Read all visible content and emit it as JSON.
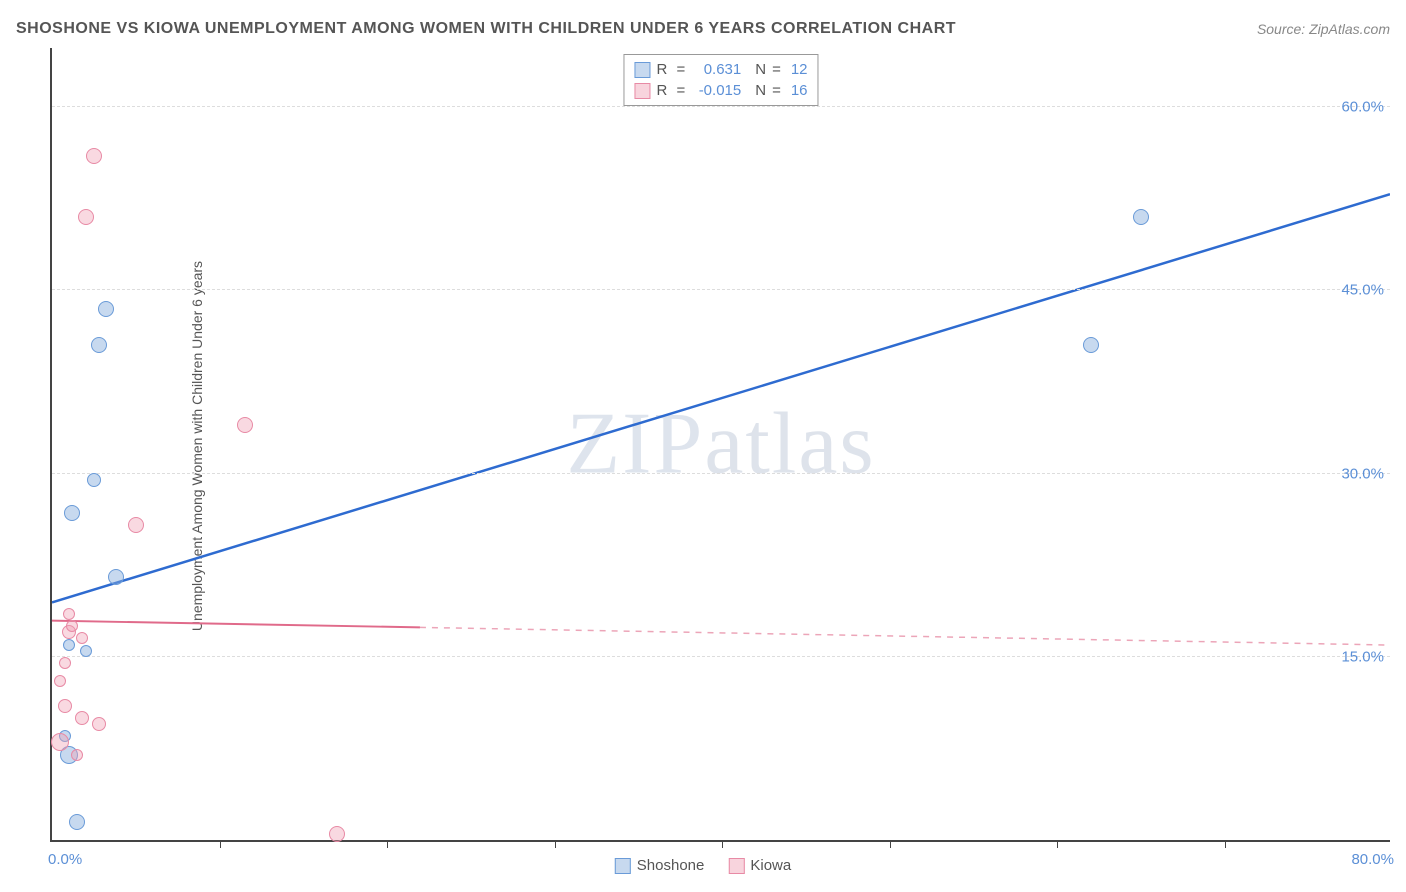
{
  "header": {
    "title": "SHOSHONE VS KIOWA UNEMPLOYMENT AMONG WOMEN WITH CHILDREN UNDER 6 YEARS CORRELATION CHART",
    "source": "Source: ZipAtlas.com"
  },
  "chart": {
    "type": "scatter",
    "ylabel": "Unemployment Among Women with Children Under 6 years",
    "xlim": [
      0,
      80
    ],
    "ylim": [
      0,
      65
    ],
    "x_axis_labels": {
      "min": "0.0%",
      "max": "80.0%"
    },
    "y_ticks": [
      {
        "value": 15,
        "label": "15.0%"
      },
      {
        "value": 30,
        "label": "30.0%"
      },
      {
        "value": 45,
        "label": "45.0%"
      },
      {
        "value": 60,
        "label": "60.0%"
      }
    ],
    "x_tick_positions": [
      10,
      20,
      30,
      40,
      50,
      60,
      70
    ],
    "background_color": "#ffffff",
    "grid_color": "#dddddd",
    "axis_color": "#444444",
    "tick_label_color": "#5b8fd6",
    "watermark": "ZIPatlas",
    "series": [
      {
        "name": "Shoshone",
        "color_fill": "rgba(130,170,220,0.45)",
        "color_stroke": "#6a9bd8",
        "trend_color": "#2e6bd0",
        "trend_width": 2.5,
        "trend_solid_until_x": 80,
        "r": 0.631,
        "n": 12,
        "trend": {
          "x1": 0,
          "y1": 19.5,
          "x2": 80,
          "y2": 53
        },
        "points": [
          {
            "x": 1.0,
            "y": 7.0,
            "size": 18
          },
          {
            "x": 0.8,
            "y": 8.5,
            "size": 12
          },
          {
            "x": 1.5,
            "y": 1.5,
            "size": 16
          },
          {
            "x": 2.0,
            "y": 15.5,
            "size": 12
          },
          {
            "x": 1.0,
            "y": 16.0,
            "size": 12
          },
          {
            "x": 1.2,
            "y": 26.8,
            "size": 16
          },
          {
            "x": 3.8,
            "y": 21.5,
            "size": 16
          },
          {
            "x": 2.5,
            "y": 29.5,
            "size": 14
          },
          {
            "x": 2.8,
            "y": 40.5,
            "size": 16
          },
          {
            "x": 3.2,
            "y": 43.5,
            "size": 16
          },
          {
            "x": 62.0,
            "y": 40.5,
            "size": 16
          },
          {
            "x": 65.0,
            "y": 51.0,
            "size": 16
          }
        ]
      },
      {
        "name": "Kiowa",
        "color_fill": "rgba(240,160,180,0.40)",
        "color_stroke": "#e88aa5",
        "trend_color": "#e06a8a",
        "trend_width": 2,
        "trend_solid_until_x": 22,
        "r": -0.015,
        "n": 16,
        "trend": {
          "x1": 0,
          "y1": 18.0,
          "x2": 80,
          "y2": 16.0
        },
        "points": [
          {
            "x": 0.5,
            "y": 8.0,
            "size": 18
          },
          {
            "x": 0.8,
            "y": 11.0,
            "size": 14
          },
          {
            "x": 1.8,
            "y": 10.0,
            "size": 14
          },
          {
            "x": 2.8,
            "y": 9.5,
            "size": 14
          },
          {
            "x": 0.5,
            "y": 13.0,
            "size": 12
          },
          {
            "x": 0.8,
            "y": 14.5,
            "size": 12
          },
          {
            "x": 1.0,
            "y": 17.0,
            "size": 14
          },
          {
            "x": 1.2,
            "y": 17.5,
            "size": 12
          },
          {
            "x": 1.0,
            "y": 18.5,
            "size": 12
          },
          {
            "x": 5.0,
            "y": 25.8,
            "size": 16
          },
          {
            "x": 11.5,
            "y": 34.0,
            "size": 16
          },
          {
            "x": 2.0,
            "y": 51.0,
            "size": 16
          },
          {
            "x": 2.5,
            "y": 56.0,
            "size": 16
          },
          {
            "x": 17.0,
            "y": 0.5,
            "size": 16
          },
          {
            "x": 1.5,
            "y": 7.0,
            "size": 12
          },
          {
            "x": 1.8,
            "y": 16.5,
            "size": 12
          }
        ]
      }
    ],
    "legend_top": {
      "r_label": "R",
      "eq": "=",
      "n_label": "N"
    },
    "legend_bottom": [
      {
        "name": "Shoshone",
        "swatch": "blue"
      },
      {
        "name": "Kiowa",
        "swatch": "pink"
      }
    ]
  }
}
